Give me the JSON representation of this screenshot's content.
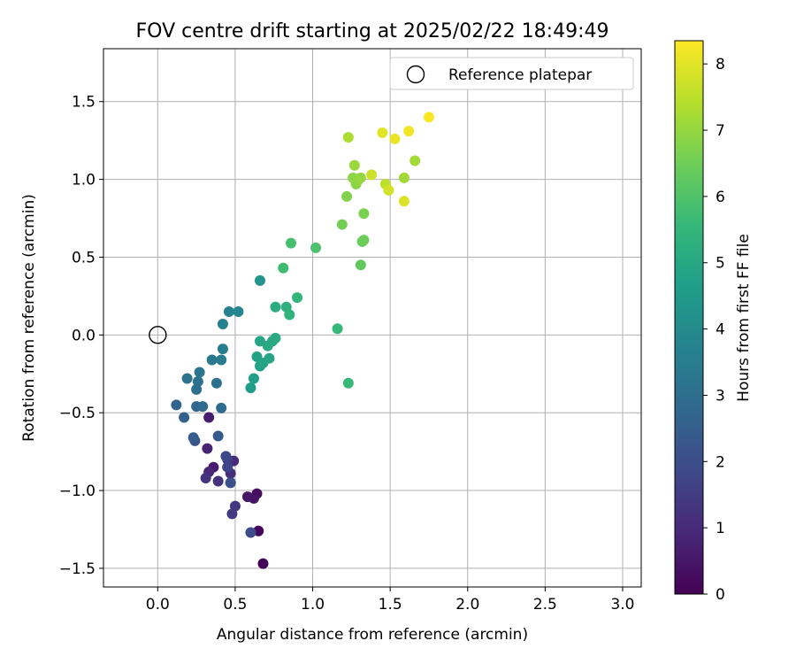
{
  "chart_data": {
    "type": "scatter",
    "title": "FOV centre drift starting at 2025/02/22 18:49:49",
    "xlabel": "Angular distance from reference (arcmin)",
    "ylabel": "Rotation from reference (arcmin)",
    "xlim": [
      -0.35,
      3.12
    ],
    "ylim": [
      -1.62,
      1.84
    ],
    "xticks": [
      0.0,
      0.5,
      1.0,
      1.5,
      2.0,
      2.5,
      3.0
    ],
    "xtick_labels": [
      "0.0",
      "0.5",
      "1.0",
      "1.5",
      "2.0",
      "2.5",
      "3.0"
    ],
    "yticks": [
      -1.5,
      -1.0,
      -0.5,
      0.0,
      0.5,
      1.0,
      1.5
    ],
    "ytick_labels": [
      "−1.5",
      "−1.0",
      "−0.5",
      "0.0",
      "0.5",
      "1.0",
      "1.5"
    ],
    "grid": true,
    "legend": {
      "position": "upper right",
      "label": "Reference platepar",
      "marker": "open-circle"
    },
    "reference_point": {
      "x": 0.0,
      "y": 0.0
    },
    "colorbar": {
      "label": "Hours from first FF file",
      "min": 0,
      "max": 8.35,
      "ticks": [
        0,
        1,
        2,
        3,
        4,
        5,
        6,
        7,
        8
      ],
      "tick_labels": [
        "0",
        "1",
        "2",
        "3",
        "4",
        "5",
        "6",
        "7",
        "8"
      ],
      "colormap": "viridis",
      "stops": [
        "#440154",
        "#482878",
        "#3e4989",
        "#31688e",
        "#26828e",
        "#1f9e89",
        "#35b779",
        "#6ece58",
        "#b5de2b",
        "#fde725"
      ]
    },
    "points": [
      {
        "x": 0.68,
        "y": -1.47,
        "h": 0.05
      },
      {
        "x": 0.65,
        "y": -1.26,
        "h": 0.15
      },
      {
        "x": 0.64,
        "y": -1.02,
        "h": 0.3
      },
      {
        "x": 0.62,
        "y": -1.05,
        "h": 0.4
      },
      {
        "x": 0.58,
        "y": -1.04,
        "h": 0.5
      },
      {
        "x": 0.36,
        "y": -0.85,
        "h": 0.6
      },
      {
        "x": 0.33,
        "y": -0.53,
        "h": 0.7
      },
      {
        "x": 0.32,
        "y": -0.73,
        "h": 0.8
      },
      {
        "x": 0.33,
        "y": -0.88,
        "h": 0.9
      },
      {
        "x": 0.49,
        "y": -0.81,
        "h": 1.0
      },
      {
        "x": 0.47,
        "y": -0.89,
        "h": 1.1
      },
      {
        "x": 0.39,
        "y": -0.94,
        "h": 1.2
      },
      {
        "x": 0.31,
        "y": -0.92,
        "h": 1.25
      },
      {
        "x": 0.5,
        "y": -1.1,
        "h": 1.35
      },
      {
        "x": 0.48,
        "y": -1.15,
        "h": 1.45
      },
      {
        "x": 0.45,
        "y": -0.8,
        "h": 1.55
      },
      {
        "x": 0.47,
        "y": -0.95,
        "h": 1.65
      },
      {
        "x": 0.45,
        "y": -0.85,
        "h": 1.75
      },
      {
        "x": 0.44,
        "y": -0.78,
        "h": 1.85
      },
      {
        "x": 0.6,
        "y": -1.27,
        "h": 1.95
      },
      {
        "x": 0.47,
        "y": -0.95,
        "h": 2.05
      },
      {
        "x": 0.24,
        "y": -0.68,
        "h": 2.15
      },
      {
        "x": 0.39,
        "y": -0.65,
        "h": 2.35
      },
      {
        "x": 0.23,
        "y": -0.66,
        "h": 2.45
      },
      {
        "x": 0.17,
        "y": -0.53,
        "h": 2.55
      },
      {
        "x": 0.12,
        "y": -0.45,
        "h": 2.65
      },
      {
        "x": 0.25,
        "y": -0.46,
        "h": 2.75
      },
      {
        "x": 0.29,
        "y": -0.46,
        "h": 2.85
      },
      {
        "x": 0.41,
        "y": -0.47,
        "h": 2.9
      },
      {
        "x": 0.25,
        "y": -0.35,
        "h": 3.0
      },
      {
        "x": 0.26,
        "y": -0.3,
        "h": 3.05
      },
      {
        "x": 0.38,
        "y": -0.31,
        "h": 3.1
      },
      {
        "x": 0.19,
        "y": -0.28,
        "h": 3.15
      },
      {
        "x": 0.27,
        "y": -0.24,
        "h": 3.25
      },
      {
        "x": 0.35,
        "y": -0.16,
        "h": 3.35
      },
      {
        "x": 0.41,
        "y": -0.16,
        "h": 3.45
      },
      {
        "x": 0.42,
        "y": -0.09,
        "h": 3.55
      },
      {
        "x": 0.42,
        "y": 0.07,
        "h": 3.65
      },
      {
        "x": 0.46,
        "y": 0.15,
        "h": 3.75
      },
      {
        "x": 0.52,
        "y": 0.15,
        "h": 3.85
      },
      {
        "x": 0.66,
        "y": 0.35,
        "h": 4.3
      },
      {
        "x": 0.6,
        "y": -0.34,
        "h": 4.6
      },
      {
        "x": 0.62,
        "y": -0.28,
        "h": 4.7
      },
      {
        "x": 0.66,
        "y": -0.2,
        "h": 4.75
      },
      {
        "x": 0.64,
        "y": -0.14,
        "h": 4.8
      },
      {
        "x": 0.68,
        "y": -0.18,
        "h": 4.85
      },
      {
        "x": 0.72,
        "y": -0.15,
        "h": 4.9
      },
      {
        "x": 0.66,
        "y": -0.04,
        "h": 4.95
      },
      {
        "x": 0.71,
        "y": -0.07,
        "h": 5.0
      },
      {
        "x": 0.74,
        "y": -0.04,
        "h": 5.05
      },
      {
        "x": 0.76,
        "y": -0.02,
        "h": 5.1
      },
      {
        "x": 0.76,
        "y": 0.18,
        "h": 5.2
      },
      {
        "x": 0.83,
        "y": 0.18,
        "h": 5.3
      },
      {
        "x": 0.85,
        "y": 0.13,
        "h": 5.4
      },
      {
        "x": 0.9,
        "y": 0.24,
        "h": 5.5
      },
      {
        "x": 1.16,
        "y": 0.04,
        "h": 5.55
      },
      {
        "x": 1.23,
        "y": -0.31,
        "h": 5.6
      },
      {
        "x": 0.81,
        "y": 0.43,
        "h": 5.75
      },
      {
        "x": 0.86,
        "y": 0.59,
        "h": 5.85
      },
      {
        "x": 1.02,
        "y": 0.56,
        "h": 5.95
      },
      {
        "x": 1.31,
        "y": 0.45,
        "h": 6.3
      },
      {
        "x": 1.32,
        "y": 0.6,
        "h": 6.4
      },
      {
        "x": 1.33,
        "y": 0.61,
        "h": 6.45
      },
      {
        "x": 1.19,
        "y": 0.71,
        "h": 6.55
      },
      {
        "x": 1.33,
        "y": 0.78,
        "h": 6.65
      },
      {
        "x": 1.22,
        "y": 0.89,
        "h": 6.75
      },
      {
        "x": 1.28,
        "y": 0.97,
        "h": 6.85
      },
      {
        "x": 1.26,
        "y": 1.01,
        "h": 6.9
      },
      {
        "x": 1.29,
        "y": 0.99,
        "h": 6.95
      },
      {
        "x": 1.31,
        "y": 1.01,
        "h": 7.0
      },
      {
        "x": 1.27,
        "y": 1.09,
        "h": 7.1
      },
      {
        "x": 1.59,
        "y": 1.01,
        "h": 7.15
      },
      {
        "x": 1.66,
        "y": 1.12,
        "h": 7.2
      },
      {
        "x": 1.23,
        "y": 1.27,
        "h": 7.3
      },
      {
        "x": 1.47,
        "y": 0.97,
        "h": 7.5
      },
      {
        "x": 1.38,
        "y": 1.03,
        "h": 7.7
      },
      {
        "x": 1.49,
        "y": 0.93,
        "h": 7.8
      },
      {
        "x": 1.59,
        "y": 0.86,
        "h": 7.9
      },
      {
        "x": 1.45,
        "y": 1.3,
        "h": 8.0
      },
      {
        "x": 1.53,
        "y": 1.26,
        "h": 8.1
      },
      {
        "x": 1.62,
        "y": 1.31,
        "h": 8.2
      },
      {
        "x": 1.75,
        "y": 1.4,
        "h": 8.3
      }
    ]
  }
}
